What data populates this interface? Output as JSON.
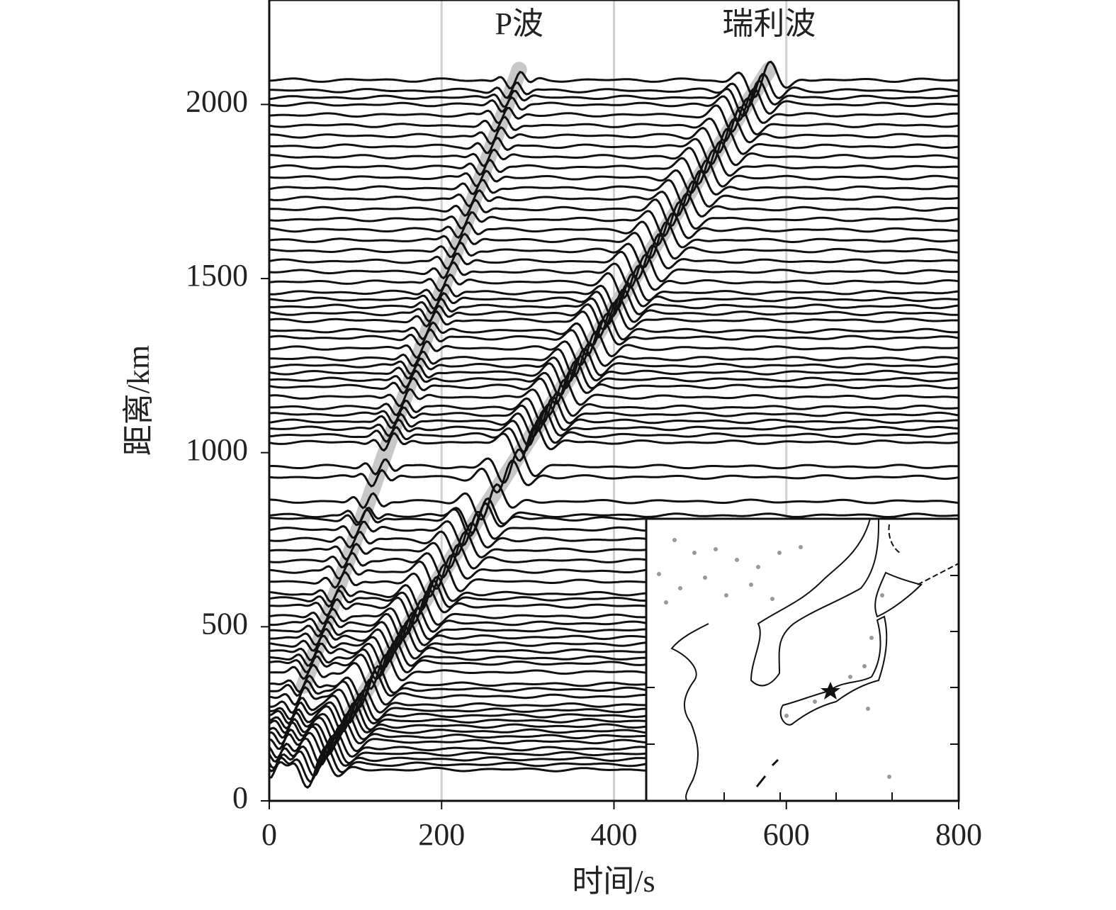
{
  "chart_data": {
    "type": "record-section",
    "xlabel": "时间/s",
    "ylabel": "距离/km",
    "xlim": [
      0,
      800
    ],
    "ylim": [
      0,
      2300
    ],
    "xticks": [
      0,
      200,
      400,
      600,
      800
    ],
    "yticks": [
      0,
      500,
      1000,
      1500,
      2000
    ],
    "grid": true,
    "color": "#111111",
    "phase_color": "#c8c8c8",
    "phases": [
      {
        "name": "P波",
        "x": [
          40,
          290
        ],
        "y": [
          330,
          2100
        ]
      },
      {
        "name": "瑞利波",
        "x": [
          95,
          580
        ],
        "y": [
          250,
          2100
        ]
      }
    ],
    "traces": [
      90,
      105,
      120,
      135,
      150,
      170,
      185,
      200,
      215,
      230,
      245,
      260,
      275,
      300,
      320,
      335,
      370,
      395,
      410,
      430,
      450,
      470,
      490,
      510,
      530,
      560,
      580,
      595,
      630,
      660,
      690,
      720,
      750,
      780,
      810,
      820,
      860,
      930,
      960,
      1030,
      1050,
      1070,
      1090,
      1110,
      1130,
      1160,
      1190,
      1210,
      1230,
      1250,
      1270,
      1300,
      1330,
      1350,
      1380,
      1400,
      1420,
      1440,
      1460,
      1490,
      1520,
      1550,
      1580,
      1610,
      1640,
      1670,
      1700,
      1730,
      1760,
      1790,
      1820,
      1850,
      1880,
      1910,
      1940,
      1970,
      2000,
      2020,
      2040,
      2070
    ]
  }
}
